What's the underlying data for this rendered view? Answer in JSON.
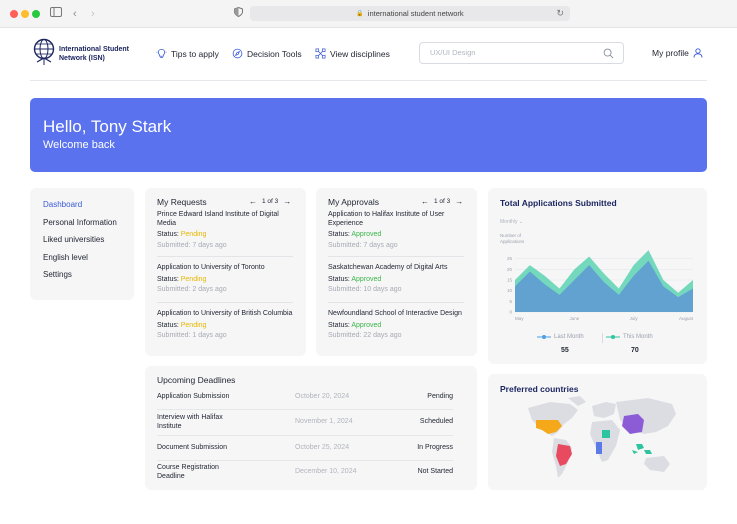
{
  "browser": {
    "url": "international student network",
    "colors": {
      "close": "#fe5f57",
      "minimize": "#febc2e",
      "maximize": "#28c840"
    }
  },
  "header": {
    "logo_text": "International Student Network (ISN)",
    "nav": [
      {
        "label": "Tips to apply",
        "icon": "lightbulb-icon"
      },
      {
        "label": "Decision Tools",
        "icon": "compass-icon"
      },
      {
        "label": "View disciplines",
        "icon": "network-icon"
      }
    ],
    "search_placeholder": "UX/UI Design",
    "profile_label": "My profile"
  },
  "banner": {
    "greeting": "Hello, Tony Stark",
    "subtitle": "Welcome back",
    "color": "#5a72ee"
  },
  "sidebar": {
    "items": [
      {
        "label": "Dashboard",
        "active": true
      },
      {
        "label": "Personal Information"
      },
      {
        "label": "Liked universities"
      },
      {
        "label": "English level"
      },
      {
        "label": "Settings"
      }
    ]
  },
  "requests": {
    "title": "My Requests",
    "pager": "1 of 3",
    "status_label": "Status:",
    "items": [
      {
        "name": "Prince Edward Island Institute of Digital Media",
        "status": "Pending",
        "submitted": "Submitted: 7 days ago"
      },
      {
        "name": "Application to University of Toronto",
        "status": "Pending",
        "submitted": "Submitted: 2 days ago"
      },
      {
        "name": "Application to University of British Columbia",
        "status": "Pending",
        "submitted": "Submitted: 1 days ago"
      }
    ]
  },
  "approvals": {
    "title": "My Approvals",
    "pager": "1 of 3",
    "status_label": "Status:",
    "items": [
      {
        "name": "Application to Halifax Institute of User Experience",
        "status": "Approved",
        "submitted": "Submitted: 7 days ago"
      },
      {
        "name": "Saskatchewan Academy of Digital Arts",
        "status": "Approved",
        "submitted": "Submitted: 10 days ago"
      },
      {
        "name": "Newfoundland School of Interactive Design",
        "status": "Approved",
        "submitted": "Submitted: 22 days ago"
      }
    ]
  },
  "status_colors": {
    "pending": "#e6b800",
    "approved": "#3bb54a"
  },
  "deadlines": {
    "title": "Upcoming Deadlines",
    "rows": [
      {
        "name": "Application Submission",
        "date": "October 20, 2024",
        "status": "Pending"
      },
      {
        "name": "Interview with Halifax Institute",
        "date": "November 1, 2024",
        "status": "Scheduled"
      },
      {
        "name": "Document Submission",
        "date": "October 25, 2024",
        "status": "In Progress"
      },
      {
        "name": "Course Registration Deadline",
        "date": "December 10, 2024",
        "status": "Not Started"
      }
    ]
  },
  "chart_data": {
    "type": "area",
    "title": "Total Applications Submitted",
    "period_selector": "Monthly",
    "ylabel": "Number of Applications",
    "ylim": [
      0,
      30
    ],
    "yticks": [
      0,
      5,
      10,
      15,
      20,
      25
    ],
    "x_tick_labels": [
      "May",
      "June",
      "July",
      "August"
    ],
    "x": [
      0,
      1,
      2,
      3,
      4,
      5,
      6,
      7,
      8,
      9,
      10,
      11,
      12
    ],
    "series": [
      {
        "name": "Last Month",
        "color": "#4aa0e6",
        "values": [
          12,
          19,
          13,
          8,
          15,
          22,
          14,
          8,
          17,
          24,
          12,
          7,
          11
        ],
        "total": "55"
      },
      {
        "name": "This Month",
        "color": "#2ec4a0",
        "values": [
          15,
          22,
          17,
          11,
          20,
          26,
          18,
          11,
          22,
          29,
          15,
          9,
          15
        ],
        "total": "70"
      }
    ],
    "grid": true,
    "legend_position": "bottom"
  },
  "countries": {
    "title": "Preferred countries",
    "highlighted": [
      {
        "name": "USA",
        "color": "#f4a81a"
      },
      {
        "name": "Brazil",
        "color": "#e84a5f"
      },
      {
        "name": "China",
        "color": "#8b5cd6"
      },
      {
        "name": "Indonesia",
        "color": "#2ec4a0"
      },
      {
        "name": "Congo",
        "color": "#2ec4a0"
      },
      {
        "name": "Nigeria",
        "color": "#5a7be8"
      }
    ]
  }
}
